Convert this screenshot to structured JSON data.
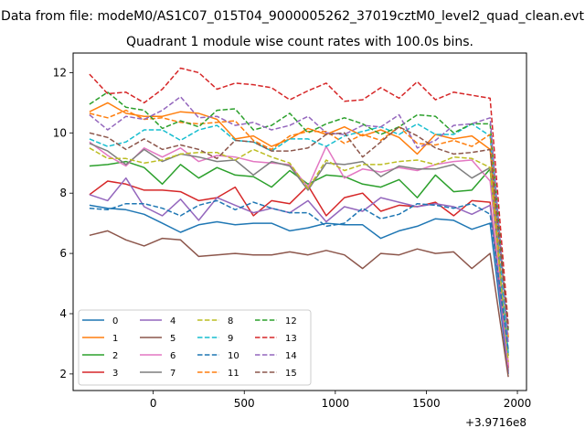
{
  "figure": {
    "suptitle": "Data from file: modeM0/AS1C07_015T04_9000005262_37019cztM0_level2_quad_clean.evt",
    "title": "Quadrant 1 module wise count rates with 100.0s bins."
  },
  "chart_data": {
    "type": "line",
    "title": "Quadrant 1 module wise count rates with 100.0s bins.",
    "xlabel": "",
    "ylabel": "",
    "x_offset_label": "+3.9716e8",
    "xlim": [
      -440,
      2050
    ],
    "ylim": [
      1.45,
      12.65
    ],
    "xticks": [
      0,
      500,
      1000,
      1500,
      2000
    ],
    "yticks": [
      2,
      4,
      6,
      8,
      10,
      12
    ],
    "grid": false,
    "legend": {
      "placement": "lower-left",
      "columns": 4
    },
    "x": [
      -350,
      -250,
      -150,
      -50,
      50,
      150,
      250,
      350,
      450,
      550,
      650,
      750,
      850,
      950,
      1050,
      1150,
      1250,
      1350,
      1450,
      1550,
      1650,
      1750,
      1850,
      1950
    ],
    "series": [
      {
        "name": "0",
        "color": "#1f77b4",
        "dash": "solid",
        "values": [
          7.6,
          7.5,
          7.45,
          7.3,
          7.0,
          6.7,
          6.95,
          7.05,
          6.95,
          7.0,
          7.0,
          6.75,
          6.85,
          7.0,
          6.95,
          6.95,
          6.5,
          6.75,
          6.9,
          7.15,
          7.1,
          6.8,
          7.0,
          2.0
        ]
      },
      {
        "name": "1",
        "color": "#ff7f0e",
        "dash": "solid",
        "values": [
          10.7,
          11.0,
          10.65,
          10.55,
          10.55,
          10.7,
          10.65,
          10.45,
          9.8,
          9.9,
          9.55,
          9.8,
          10.15,
          9.95,
          10.2,
          9.9,
          10.1,
          9.85,
          9.3,
          9.95,
          9.8,
          9.9,
          9.45,
          2.3
        ]
      },
      {
        "name": "2",
        "color": "#2ca02c",
        "dash": "solid",
        "values": [
          8.9,
          8.95,
          9.05,
          8.85,
          8.3,
          8.95,
          8.5,
          8.85,
          8.6,
          8.55,
          8.2,
          8.75,
          8.3,
          8.6,
          8.55,
          8.3,
          8.2,
          8.45,
          7.85,
          8.6,
          8.05,
          8.1,
          8.8,
          2.1
        ]
      },
      {
        "name": "3",
        "color": "#d62728",
        "dash": "solid",
        "values": [
          7.95,
          8.4,
          8.3,
          8.1,
          8.1,
          8.05,
          7.75,
          7.85,
          8.2,
          7.25,
          7.75,
          7.65,
          8.25,
          7.25,
          7.85,
          8.0,
          7.4,
          7.6,
          7.55,
          7.7,
          7.25,
          7.75,
          7.7,
          2.2
        ]
      },
      {
        "name": "4",
        "color": "#9467bd",
        "dash": "solid",
        "values": [
          7.95,
          7.75,
          8.5,
          7.55,
          7.25,
          7.8,
          7.1,
          7.85,
          7.6,
          7.35,
          7.5,
          7.35,
          7.75,
          7.05,
          7.55,
          7.4,
          7.85,
          7.7,
          7.55,
          7.65,
          7.55,
          7.3,
          7.6,
          2.05
        ]
      },
      {
        "name": "5",
        "color": "#8c564b",
        "dash": "solid",
        "values": [
          6.6,
          6.75,
          6.45,
          6.25,
          6.5,
          6.45,
          5.9,
          5.95,
          6.0,
          5.95,
          5.95,
          6.05,
          5.95,
          6.1,
          5.95,
          5.5,
          6.0,
          5.95,
          6.15,
          6.0,
          6.05,
          5.5,
          6.0,
          1.9
        ]
      },
      {
        "name": "6",
        "color": "#e377c2",
        "dash": "solid",
        "values": [
          9.7,
          9.25,
          8.9,
          9.5,
          9.2,
          9.5,
          9.05,
          9.25,
          9.2,
          9.05,
          9.0,
          8.95,
          8.2,
          9.55,
          8.5,
          8.8,
          8.7,
          8.85,
          8.75,
          8.95,
          9.05,
          9.1,
          8.4,
          2.3
        ]
      },
      {
        "name": "7",
        "color": "#7f7f7f",
        "dash": "solid",
        "values": [
          9.65,
          9.4,
          8.95,
          9.45,
          9.05,
          9.3,
          9.2,
          9.05,
          9.1,
          8.6,
          9.05,
          8.9,
          8.1,
          9.0,
          8.95,
          9.05,
          8.55,
          8.9,
          8.8,
          8.8,
          8.95,
          8.5,
          8.85,
          2.6
        ]
      },
      {
        "name": "8",
        "color": "#bcbd22",
        "dash": "dashed",
        "values": [
          9.5,
          9.15,
          9.15,
          9.0,
          9.1,
          9.3,
          9.35,
          9.35,
          9.1,
          9.45,
          9.2,
          9.0,
          8.15,
          9.1,
          8.75,
          8.95,
          8.95,
          9.05,
          9.1,
          8.95,
          9.2,
          9.15,
          8.85,
          2.4
        ]
      },
      {
        "name": "9",
        "color": "#17becf",
        "dash": "dashed",
        "values": [
          9.8,
          9.55,
          9.7,
          10.1,
          10.1,
          9.75,
          10.1,
          10.25,
          9.75,
          9.7,
          9.4,
          9.8,
          9.8,
          9.55,
          9.9,
          10.05,
          10.2,
          9.95,
          10.3,
          9.95,
          9.95,
          10.3,
          9.9,
          2.7
        ]
      },
      {
        "name": "10",
        "color": "#1f77b4",
        "dash": "dashed",
        "values": [
          7.5,
          7.45,
          7.65,
          7.65,
          7.5,
          7.25,
          7.6,
          7.75,
          7.45,
          7.7,
          7.5,
          7.35,
          7.35,
          6.9,
          7.0,
          7.5,
          7.15,
          7.3,
          7.65,
          7.6,
          7.5,
          7.65,
          7.3,
          2.8
        ]
      },
      {
        "name": "11",
        "color": "#ff7f0e",
        "dash": "dashed",
        "values": [
          10.65,
          10.5,
          10.75,
          10.45,
          10.5,
          10.35,
          10.3,
          10.35,
          10.4,
          9.75,
          9.45,
          9.9,
          10.05,
          10.05,
          9.65,
          9.95,
          9.75,
          10.2,
          9.65,
          9.6,
          9.75,
          9.55,
          9.95,
          3.2
        ]
      },
      {
        "name": "12",
        "color": "#2ca02c",
        "dash": "dashed",
        "values": [
          10.95,
          11.35,
          10.85,
          10.75,
          10.15,
          10.4,
          10.2,
          10.75,
          10.8,
          10.1,
          10.25,
          10.65,
          10.0,
          10.3,
          10.5,
          10.3,
          9.95,
          10.2,
          10.6,
          10.55,
          10.0,
          10.3,
          10.3,
          3.4
        ]
      },
      {
        "name": "13",
        "color": "#d62728",
        "dash": "dashed",
        "values": [
          11.95,
          11.3,
          11.35,
          11.0,
          11.45,
          12.15,
          12.0,
          11.45,
          11.65,
          11.6,
          11.5,
          11.1,
          11.4,
          11.65,
          11.05,
          11.1,
          11.5,
          11.15,
          11.7,
          11.1,
          11.35,
          11.25,
          11.15,
          3.6
        ]
      },
      {
        "name": "14",
        "color": "#9467bd",
        "dash": "dashed",
        "values": [
          10.6,
          10.1,
          10.55,
          10.45,
          10.75,
          11.2,
          10.5,
          10.55,
          10.25,
          10.35,
          10.1,
          10.25,
          10.55,
          10.0,
          9.95,
          10.25,
          10.2,
          10.6,
          9.5,
          9.75,
          10.25,
          10.3,
          10.5,
          3.0
        ]
      },
      {
        "name": "15",
        "color": "#8c564b",
        "dash": "dashed",
        "values": [
          10.0,
          9.85,
          9.45,
          9.8,
          9.45,
          9.6,
          9.45,
          9.15,
          9.75,
          9.7,
          9.4,
          9.4,
          9.5,
          9.95,
          10.0,
          9.2,
          9.7,
          10.2,
          9.9,
          9.5,
          9.3,
          9.35,
          9.45,
          3.5
        ]
      }
    ]
  }
}
